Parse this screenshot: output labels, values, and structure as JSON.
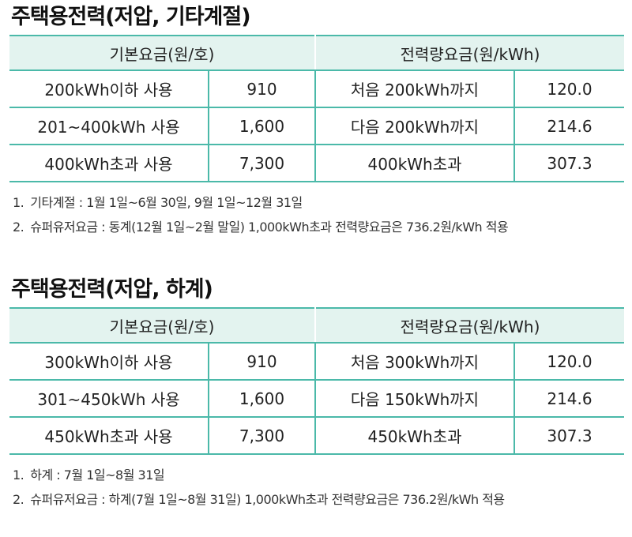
{
  "sections": [
    {
      "title": "주택용전력(저압, 기타계절)",
      "header_left": "기본요금(원/호)",
      "header_right": "전력량요금(원/kWh)",
      "rows": [
        {
          "base_label": "200kWh이하 사용",
          "base_value": "910",
          "energy_label": "처음 200kWh까지",
          "energy_value": "120.0"
        },
        {
          "base_label": "201~400kWh 사용",
          "base_value": "1,600",
          "energy_label": "다음 200kWh까지",
          "energy_value": "214.6"
        },
        {
          "base_label": "400kWh초과 사용",
          "base_value": "7,300",
          "energy_label": "400kWh초과",
          "energy_value": "307.3"
        }
      ],
      "notes": [
        {
          "num": "1.",
          "text": "기타계절 : 1월 1일~6월 30일, 9월 1일~12월 31일"
        },
        {
          "num": "2.",
          "text": "슈퍼유저요금 : 동계(12월 1일~2월 말일) 1,000kWh초과 전력량요금은 736.2원/kWh 적용"
        }
      ]
    },
    {
      "title": "주택용전력(저압, 하계)",
      "header_left": "기본요금(원/호)",
      "header_right": "전력량요금(원/kWh)",
      "rows": [
        {
          "base_label": "300kWh이하 사용",
          "base_value": "910",
          "energy_label": "처음 300kWh까지",
          "energy_value": "120.0"
        },
        {
          "base_label": "301~450kWh 사용",
          "base_value": "1,600",
          "energy_label": "다음 150kWh까지",
          "energy_value": "214.6"
        },
        {
          "base_label": "450kWh초과 사용",
          "base_value": "7,300",
          "energy_label": "450kWh초과",
          "energy_value": "307.3"
        }
      ],
      "notes": [
        {
          "num": "1.",
          "text": "하계 : 7월 1일~8월 31일"
        },
        {
          "num": "2.",
          "text": "슈퍼유저요금 : 하계(7월 1일~8월 31일) 1,000kWh초과 전력량요금은 736.2원/kWh 적용"
        }
      ]
    }
  ]
}
